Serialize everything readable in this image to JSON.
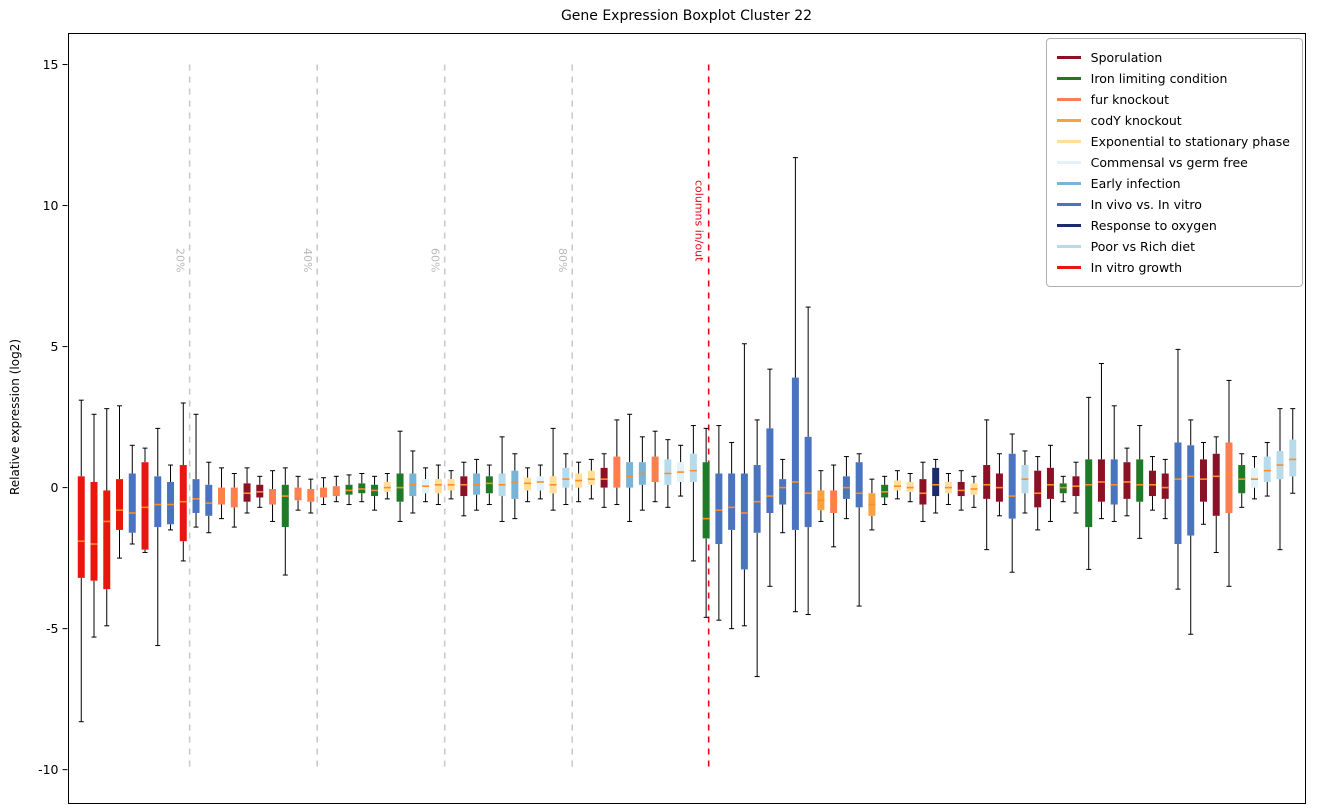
{
  "chart_data": {
    "type": "boxplot",
    "title": "Gene Expression Boxplot Cluster 22",
    "ylabel": "Relative expression (log2)",
    "xlabel": "",
    "ylim": [
      -11.2,
      16.1
    ],
    "yticks": [
      15,
      10,
      5,
      0,
      -5,
      -10
    ],
    "grid": false,
    "legend_position": "top-right",
    "median_color": "#ff8c26",
    "whisker_color": "#000000",
    "conditions": [
      {
        "name": "Sporulation",
        "color": "#8c1127"
      },
      {
        "name": "Iron limiting condition",
        "color": "#1f7a28"
      },
      {
        "name": "fur knockout",
        "color": "#fc7e51"
      },
      {
        "name": "codY knockout",
        "color": "#f8a13e"
      },
      {
        "name": "Exponential to stationary phase",
        "color": "#ffdf9b"
      },
      {
        "name": "Commensal vs germ free",
        "color": "#e1f3f8"
      },
      {
        "name": "Early infection",
        "color": "#79b3d6"
      },
      {
        "name": "In vivo vs. In vitro",
        "color": "#4a74c0"
      },
      {
        "name": "Response to oxygen",
        "color": "#1c2a6e"
      },
      {
        "name": "Poor vs Rich diet",
        "color": "#b8dbec"
      },
      {
        "name": "In vitro growth",
        "color": "#e8160f"
      }
    ],
    "vlines": [
      {
        "label": "20%",
        "pos": 9.5,
        "top": 15,
        "bottom": -10,
        "color": "#c9c9c9",
        "label_color": "#b9b9b9",
        "kind": "percent"
      },
      {
        "label": "40%",
        "pos": 19.5,
        "top": 15,
        "bottom": -10,
        "color": "#c9c9c9",
        "label_color": "#b9b9b9",
        "kind": "percent"
      },
      {
        "label": "60%",
        "pos": 29.5,
        "top": 15,
        "bottom": -10,
        "color": "#c9c9c9",
        "label_color": "#b9b9b9",
        "kind": "percent"
      },
      {
        "label": "80%",
        "pos": 39.5,
        "top": 15,
        "bottom": -10,
        "color": "#c9c9c9",
        "label_color": "#b9b9b9",
        "kind": "percent"
      },
      {
        "label": "columns in/out",
        "pos": 50.2,
        "top": 15,
        "bottom": -10,
        "color": "#e30613",
        "label_color": "#e30613",
        "kind": "boundary"
      }
    ],
    "boxes_format": [
      "condition_index",
      "whisker_low",
      "q1",
      "median",
      "q3",
      "whisker_high"
    ],
    "boxes": [
      [
        10,
        -8.3,
        -3.2,
        -1.9,
        0.4,
        3.1
      ],
      [
        10,
        -5.3,
        -3.3,
        -2.0,
        0.2,
        2.6
      ],
      [
        10,
        -4.9,
        -3.6,
        -1.2,
        -0.1,
        2.8
      ],
      [
        10,
        -2.5,
        -1.5,
        -0.8,
        0.3,
        2.9
      ],
      [
        7,
        -2.0,
        -1.6,
        -0.9,
        0.5,
        1.5
      ],
      [
        10,
        -2.3,
        -2.2,
        -0.7,
        0.9,
        1.4
      ],
      [
        7,
        -5.6,
        -1.4,
        -0.6,
        0.4,
        2.1
      ],
      [
        7,
        -1.5,
        -1.3,
        -0.6,
        0.2,
        0.8
      ],
      [
        10,
        -2.6,
        -1.9,
        -0.5,
        0.8,
        3.0
      ],
      [
        7,
        -1.4,
        -0.9,
        -0.4,
        0.3,
        2.6
      ],
      [
        7,
        -1.6,
        -1.0,
        -0.55,
        0.1,
        0.9
      ],
      [
        2,
        -1.1,
        -0.6,
        -0.3,
        0.0,
        0.7
      ],
      [
        2,
        -1.4,
        -0.7,
        -0.35,
        0.0,
        0.5
      ],
      [
        0,
        -0.9,
        -0.5,
        -0.2,
        0.15,
        0.7
      ],
      [
        0,
        -0.7,
        -0.35,
        -0.15,
        0.1,
        0.4
      ],
      [
        2,
        -1.2,
        -0.6,
        -0.3,
        -0.05,
        0.6
      ],
      [
        1,
        -3.1,
        -1.4,
        -0.3,
        0.1,
        0.7
      ],
      [
        2,
        -0.8,
        -0.45,
        -0.25,
        0.0,
        0.4
      ],
      [
        2,
        -0.9,
        -0.5,
        -0.3,
        -0.05,
        0.3
      ],
      [
        2,
        -0.6,
        -0.35,
        -0.2,
        0.0,
        0.35
      ],
      [
        2,
        -0.5,
        -0.3,
        -0.15,
        0.05,
        0.4
      ],
      [
        1,
        -0.6,
        -0.25,
        -0.1,
        0.1,
        0.45
      ],
      [
        1,
        -0.5,
        -0.2,
        -0.05,
        0.15,
        0.5
      ],
      [
        1,
        -0.8,
        -0.3,
        -0.1,
        0.1,
        0.4
      ],
      [
        4,
        -0.4,
        -0.15,
        0.0,
        0.2,
        0.5
      ],
      [
        1,
        -1.2,
        -0.5,
        0.0,
        0.5,
        2.0
      ],
      [
        6,
        -0.9,
        -0.3,
        0.1,
        0.5,
        1.3
      ],
      [
        5,
        -0.5,
        -0.2,
        0.05,
        0.3,
        0.7
      ],
      [
        4,
        -0.6,
        -0.2,
        0.1,
        0.3,
        0.8
      ],
      [
        4,
        -0.4,
        -0.1,
        0.1,
        0.3,
        0.6
      ],
      [
        0,
        -1.0,
        -0.3,
        0.1,
        0.4,
        0.9
      ],
      [
        6,
        -0.8,
        -0.25,
        0.1,
        0.5,
        1.0
      ],
      [
        1,
        -0.6,
        -0.2,
        0.15,
        0.4,
        0.8
      ],
      [
        9,
        -1.2,
        -0.3,
        0.1,
        0.5,
        1.8
      ],
      [
        6,
        -1.1,
        -0.4,
        0.2,
        0.6,
        1.2
      ],
      [
        4,
        -0.5,
        -0.1,
        0.15,
        0.35,
        0.7
      ],
      [
        5,
        -0.4,
        -0.1,
        0.2,
        0.4,
        0.8
      ],
      [
        4,
        -0.8,
        -0.2,
        0.1,
        0.4,
        2.1
      ],
      [
        9,
        -0.6,
        0.0,
        0.3,
        0.7,
        1.2
      ],
      [
        4,
        -0.5,
        0.0,
        0.25,
        0.5,
        0.9
      ],
      [
        4,
        -0.4,
        0.1,
        0.3,
        0.6,
        1.0
      ],
      [
        0,
        -0.7,
        0.0,
        0.3,
        0.7,
        1.2
      ],
      [
        2,
        -0.6,
        0.0,
        0.4,
        1.1,
        2.4
      ],
      [
        6,
        -1.2,
        0.0,
        0.4,
        0.9,
        2.6
      ],
      [
        6,
        -0.8,
        0.1,
        0.5,
        0.9,
        1.8
      ],
      [
        2,
        -0.5,
        0.2,
        0.6,
        1.1,
        2.0
      ],
      [
        9,
        -0.7,
        0.1,
        0.5,
        1.0,
        1.7
      ],
      [
        5,
        -0.3,
        0.2,
        0.55,
        0.9,
        1.5
      ],
      [
        9,
        -2.6,
        0.2,
        0.6,
        1.2,
        2.2
      ],
      [
        1,
        -4.6,
        -1.8,
        -1.1,
        0.9,
        2.1
      ],
      [
        7,
        -4.7,
        -2.0,
        -0.8,
        0.5,
        2.2
      ],
      [
        7,
        -5.0,
        -1.5,
        -0.7,
        0.5,
        1.6
      ],
      [
        7,
        -4.9,
        -2.9,
        -0.9,
        0.5,
        5.1
      ],
      [
        7,
        -6.7,
        -1.6,
        -0.5,
        0.8,
        2.4
      ],
      [
        7,
        -3.5,
        -0.9,
        -0.3,
        2.1,
        4.2
      ],
      [
        7,
        -1.6,
        -0.6,
        0.0,
        0.3,
        1.0
      ],
      [
        7,
        -4.4,
        -1.5,
        0.2,
        3.9,
        11.7
      ],
      [
        7,
        -4.5,
        -1.4,
        -0.2,
        1.8,
        6.4
      ],
      [
        3,
        -1.2,
        -0.8,
        -0.45,
        -0.1,
        0.6
      ],
      [
        2,
        -2.1,
        -0.9,
        -0.5,
        -0.1,
        0.8
      ],
      [
        7,
        -1.1,
        -0.4,
        0.0,
        0.4,
        1.1
      ],
      [
        7,
        -4.2,
        -0.7,
        -0.2,
        0.9,
        1.2
      ],
      [
        3,
        -1.5,
        -1.0,
        -0.6,
        -0.2,
        0.3
      ],
      [
        1,
        -0.6,
        -0.35,
        -0.15,
        0.1,
        0.4
      ],
      [
        4,
        -0.4,
        -0.1,
        0.05,
        0.25,
        0.6
      ],
      [
        4,
        -0.5,
        -0.15,
        0.0,
        0.2,
        0.5
      ],
      [
        0,
        -1.2,
        -0.6,
        -0.2,
        0.3,
        0.9
      ],
      [
        8,
        -0.9,
        -0.3,
        0.1,
        0.7,
        1.0
      ],
      [
        4,
        -0.6,
        -0.2,
        0.0,
        0.2,
        0.5
      ],
      [
        0,
        -0.8,
        -0.3,
        -0.1,
        0.2,
        0.6
      ],
      [
        4,
        -0.7,
        -0.25,
        -0.05,
        0.15,
        0.4
      ],
      [
        0,
        -2.2,
        -0.4,
        0.1,
        0.8,
        2.4
      ],
      [
        0,
        -1.0,
        -0.5,
        0.0,
        0.5,
        1.2
      ],
      [
        7,
        -3.0,
        -1.1,
        -0.3,
        1.2,
        1.9
      ],
      [
        9,
        -0.9,
        -0.2,
        0.3,
        0.8,
        1.3
      ],
      [
        0,
        -1.5,
        -0.7,
        -0.2,
        0.6,
        1.1
      ],
      [
        0,
        -1.2,
        -0.4,
        0.1,
        0.7,
        1.5
      ],
      [
        1,
        -0.5,
        -0.2,
        0.0,
        0.15,
        0.4
      ],
      [
        0,
        -0.9,
        -0.3,
        0.05,
        0.4,
        0.9
      ],
      [
        1,
        -2.9,
        -1.4,
        0.1,
        1.0,
        3.2
      ],
      [
        0,
        -1.1,
        -0.5,
        0.2,
        1.0,
        4.4
      ],
      [
        7,
        -1.2,
        -0.6,
        0.1,
        1.0,
        2.9
      ],
      [
        0,
        -1.0,
        -0.4,
        0.2,
        0.9,
        1.4
      ],
      [
        1,
        -1.8,
        -0.5,
        0.1,
        1.0,
        2.2
      ],
      [
        0,
        -0.8,
        -0.3,
        0.1,
        0.6,
        1.1
      ],
      [
        0,
        -1.1,
        -0.4,
        0.0,
        0.5,
        1.0
      ],
      [
        7,
        -3.6,
        -2.0,
        0.3,
        1.6,
        4.9
      ],
      [
        7,
        -5.2,
        -1.7,
        0.4,
        1.5,
        2.4
      ],
      [
        0,
        -1.3,
        -0.5,
        0.3,
        1.0,
        1.6
      ],
      [
        0,
        -2.3,
        -1.0,
        0.4,
        1.2,
        1.8
      ],
      [
        2,
        -3.5,
        -0.9,
        0.5,
        1.6,
        3.8
      ],
      [
        1,
        -0.7,
        -0.2,
        0.3,
        0.8,
        1.2
      ],
      [
        5,
        -0.4,
        0.0,
        0.3,
        0.7,
        1.1
      ],
      [
        9,
        -0.3,
        0.2,
        0.6,
        1.1,
        1.6
      ],
      [
        9,
        -2.2,
        0.3,
        0.8,
        1.3,
        2.8
      ],
      [
        9,
        -0.2,
        0.4,
        1.0,
        1.7,
        2.8
      ]
    ]
  }
}
